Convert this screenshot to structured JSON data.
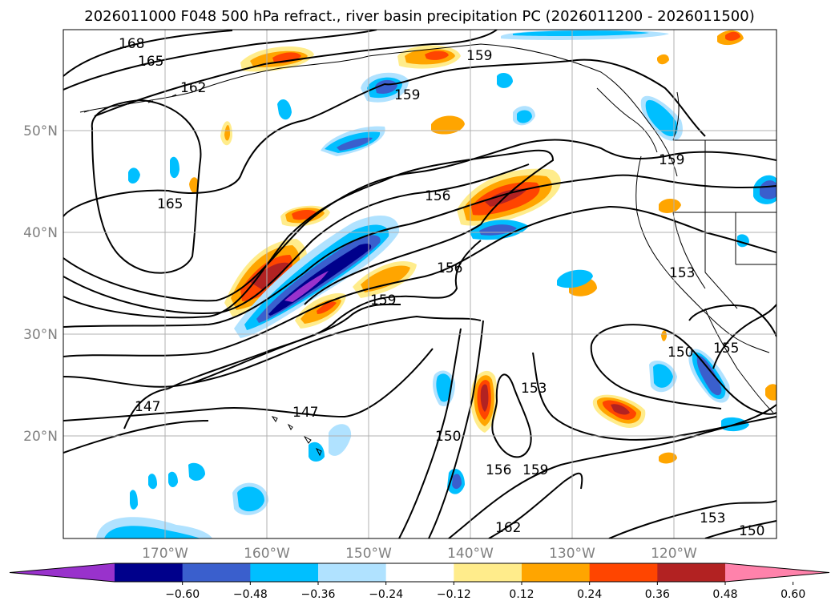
{
  "title": "2026011000 F048 500 hPa refract., river basin precipitation PC (2026011200 - 2026011500)",
  "map": {
    "lat_labels": [
      "50°N",
      "40°N",
      "30°N",
      "20°N"
    ],
    "lon_labels": [
      "170°W",
      "160°W",
      "150°W",
      "140°W",
      "130°W",
      "120°W"
    ],
    "contour_labels": [
      "168",
      "165",
      "162",
      "159",
      "159",
      "159",
      "165",
      "156",
      "156",
      "159",
      "153",
      "150",
      "155",
      "153",
      "147",
      "147",
      "150",
      "156",
      "159",
      "162",
      "153",
      "150"
    ]
  },
  "colorbar": {
    "colors": [
      "#9932cc",
      "#00008b",
      "#3a5fcd",
      "#00bfff",
      "#b0e2ff",
      "#ffffff",
      "#ffec8b",
      "#ffa500",
      "#ff4500",
      "#b22222",
      "#ff82ab"
    ],
    "ticks": [
      "−0.60",
      "−0.48",
      "−0.36",
      "−0.24",
      "−0.12",
      "0.12",
      "0.24",
      "0.36",
      "0.48",
      "0.60"
    ]
  }
}
